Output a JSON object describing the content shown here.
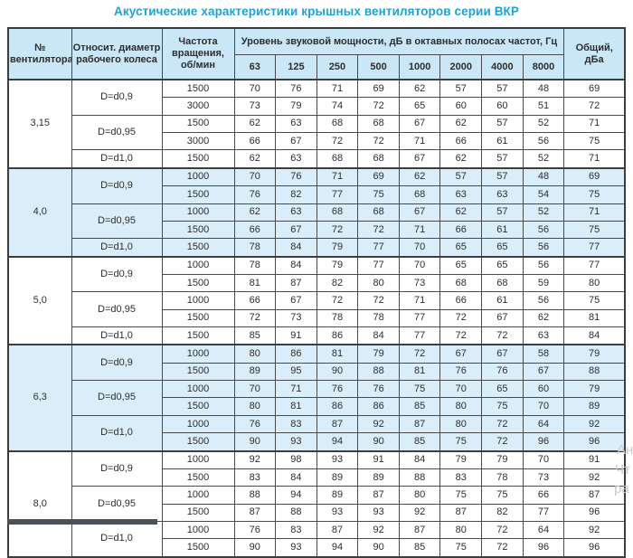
{
  "title": "Акустические характеристики крышных вентиляторов серии ВКР",
  "colors": {
    "title_text": "#1ba2d9",
    "header_bg": "#c9e7f7",
    "section_highlight_bg": "#d9eef9",
    "border_dark": "#3d3d3d",
    "border_light": "#98a0a6",
    "watermark_text": "#c5ccd1",
    "bottom_bar": "#4a5257"
  },
  "header": {
    "fan": "№ вентилятора",
    "diameter": "Относит. диаметр рабочего колеса",
    "speed": "Частота вращения, об/мин",
    "spl": "Уровень звуковой мощности, дБ в октавных полосах частот, Гц",
    "freqs": [
      "63",
      "125",
      "250",
      "500",
      "1000",
      "2000",
      "4000",
      "8000"
    ],
    "total": "Общий, дБа"
  },
  "watermark": [
    "Ан",
    "Чт",
    "ра"
  ],
  "sections": [
    {
      "fan": "3,15",
      "highlight": false,
      "groups": [
        {
          "d": "D=d0,9",
          "rows": [
            {
              "rpm": "1500",
              "v": [
                70,
                76,
                71,
                69,
                62,
                57,
                57,
                48
              ],
              "total": 69
            },
            {
              "rpm": "3000",
              "v": [
                73,
                79,
                74,
                72,
                65,
                60,
                60,
                51
              ],
              "total": 72
            }
          ]
        },
        {
          "d": "D=d0,95",
          "rows": [
            {
              "rpm": "1500",
              "v": [
                62,
                63,
                68,
                68,
                67,
                62,
                57,
                52
              ],
              "total": 71
            },
            {
              "rpm": "3000",
              "v": [
                66,
                67,
                72,
                72,
                71,
                66,
                61,
                56
              ],
              "total": 75
            }
          ]
        },
        {
          "d": "D=d1,0",
          "rows": [
            {
              "rpm": "1500",
              "v": [
                62,
                63,
                68,
                68,
                67,
                62,
                57,
                52
              ],
              "total": 71
            }
          ]
        }
      ]
    },
    {
      "fan": "4,0",
      "highlight": true,
      "groups": [
        {
          "d": "D=d0,9",
          "rows": [
            {
              "rpm": "1000",
              "v": [
                70,
                76,
                71,
                69,
                62,
                57,
                57,
                48
              ],
              "total": 69
            },
            {
              "rpm": "1500",
              "v": [
                76,
                82,
                77,
                75,
                68,
                63,
                63,
                54
              ],
              "total": 75
            }
          ]
        },
        {
          "d": "D=d0,95",
          "rows": [
            {
              "rpm": "1000",
              "v": [
                62,
                63,
                68,
                68,
                67,
                62,
                57,
                52
              ],
              "total": 71
            },
            {
              "rpm": "1500",
              "v": [
                66,
                67,
                72,
                72,
                71,
                66,
                61,
                56
              ],
              "total": 75
            }
          ]
        },
        {
          "d": "D=d1,0",
          "rows": [
            {
              "rpm": "1500",
              "v": [
                78,
                84,
                79,
                77,
                70,
                65,
                65,
                56
              ],
              "total": 77
            }
          ]
        }
      ]
    },
    {
      "fan": "5,0",
      "highlight": false,
      "groups": [
        {
          "d": "D=d0,9",
          "rows": [
            {
              "rpm": "1000",
              "v": [
                78,
                84,
                79,
                77,
                70,
                65,
                65,
                56
              ],
              "total": 77
            },
            {
              "rpm": "1500",
              "v": [
                81,
                87,
                82,
                80,
                73,
                68,
                68,
                59
              ],
              "total": 80
            }
          ]
        },
        {
          "d": "D=d0,95",
          "rows": [
            {
              "rpm": "1000",
              "v": [
                66,
                67,
                72,
                72,
                71,
                66,
                61,
                56
              ],
              "total": 75
            },
            {
              "rpm": "1500",
              "v": [
                72,
                73,
                78,
                78,
                77,
                72,
                67,
                62
              ],
              "total": 81
            }
          ]
        },
        {
          "d": "D=d1,0",
          "rows": [
            {
              "rpm": "1500",
              "v": [
                85,
                91,
                86,
                84,
                77,
                72,
                72,
                63
              ],
              "total": 84
            }
          ]
        }
      ]
    },
    {
      "fan": "6,3",
      "highlight": true,
      "groups": [
        {
          "d": "D=d0,9",
          "rows": [
            {
              "rpm": "1000",
              "v": [
                80,
                86,
                81,
                79,
                72,
                67,
                67,
                58
              ],
              "total": 79
            },
            {
              "rpm": "1500",
              "v": [
                89,
                95,
                90,
                88,
                81,
                76,
                76,
                67
              ],
              "total": 88
            }
          ]
        },
        {
          "d": "D=d0,95",
          "rows": [
            {
              "rpm": "1000",
              "v": [
                70,
                71,
                76,
                76,
                75,
                70,
                65,
                60
              ],
              "total": 79
            },
            {
              "rpm": "1500",
              "v": [
                80,
                81,
                86,
                86,
                85,
                80,
                75,
                70
              ],
              "total": 89
            }
          ]
        },
        {
          "d": "D=d1,0",
          "rows": [
            {
              "rpm": "1000",
              "v": [
                76,
                83,
                87,
                92,
                87,
                80,
                72,
                64
              ],
              "total": 92
            },
            {
              "rpm": "1500",
              "v": [
                90,
                93,
                94,
                90,
                85,
                75,
                72,
                96
              ],
              "total": 96
            }
          ]
        }
      ]
    },
    {
      "fan": "8,0",
      "highlight": false,
      "groups": [
        {
          "d": "D=d0,9",
          "rows": [
            {
              "rpm": "1000",
              "v": [
                92,
                98,
                93,
                91,
                84,
                79,
                79,
                70
              ],
              "total": 91
            },
            {
              "rpm": "1500",
              "v": [
                83,
                84,
                89,
                89,
                88,
                83,
                78,
                73
              ],
              "total": 92
            }
          ]
        },
        {
          "d": "D=d0,95",
          "rows": [
            {
              "rpm": "1000",
              "v": [
                88,
                94,
                89,
                87,
                80,
                75,
                75,
                66
              ],
              "total": 87
            },
            {
              "rpm": "1500",
              "v": [
                87,
                88,
                93,
                93,
                92,
                87,
                82,
                77
              ],
              "total": 96
            }
          ]
        },
        {
          "d": "D=d1,0",
          "rows": [
            {
              "rpm": "1000",
              "v": [
                76,
                83,
                87,
                92,
                87,
                80,
                72,
                64
              ],
              "total": 92
            },
            {
              "rpm": "1500",
              "v": [
                90,
                93,
                94,
                90,
                85,
                75,
                72,
                96
              ],
              "total": 96
            }
          ]
        }
      ]
    }
  ]
}
